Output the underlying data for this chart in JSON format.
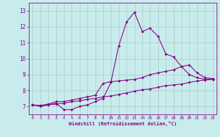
{
  "xlabel": "Windchill (Refroidissement éolien,°C)",
  "background_color": "#c8ecec",
  "grid_color": "#a8c8c8",
  "line_color": "#880088",
  "xlim": [
    -0.5,
    23.5
  ],
  "ylim": [
    6.5,
    13.5
  ],
  "xticks": [
    0,
    1,
    2,
    3,
    4,
    5,
    6,
    7,
    8,
    9,
    10,
    11,
    12,
    13,
    14,
    15,
    16,
    17,
    18,
    19,
    20,
    21,
    22,
    23
  ],
  "yticks": [
    7,
    8,
    9,
    10,
    11,
    12,
    13
  ],
  "hours": [
    0,
    1,
    2,
    3,
    4,
    5,
    6,
    7,
    8,
    9,
    10,
    11,
    12,
    13,
    14,
    15,
    16,
    17,
    18,
    19,
    20,
    21,
    22,
    23
  ],
  "line1": [
    7.1,
    7.0,
    7.1,
    7.2,
    6.8,
    6.8,
    7.0,
    7.1,
    7.3,
    7.5,
    8.5,
    10.8,
    12.3,
    12.9,
    11.7,
    11.9,
    11.4,
    10.3,
    10.1,
    9.5,
    9.0,
    8.8,
    8.7,
    8.7
  ],
  "line2": [
    7.1,
    7.05,
    7.15,
    7.3,
    7.3,
    7.4,
    7.5,
    7.6,
    7.7,
    8.45,
    8.55,
    8.6,
    8.65,
    8.7,
    8.8,
    9.0,
    9.1,
    9.2,
    9.3,
    9.5,
    9.6,
    9.1,
    8.8,
    8.75
  ],
  "line3": [
    7.1,
    7.05,
    7.1,
    7.15,
    7.2,
    7.3,
    7.35,
    7.45,
    7.5,
    7.6,
    7.65,
    7.75,
    7.85,
    7.95,
    8.05,
    8.1,
    8.2,
    8.3,
    8.35,
    8.4,
    8.5,
    8.6,
    8.65,
    8.7
  ]
}
